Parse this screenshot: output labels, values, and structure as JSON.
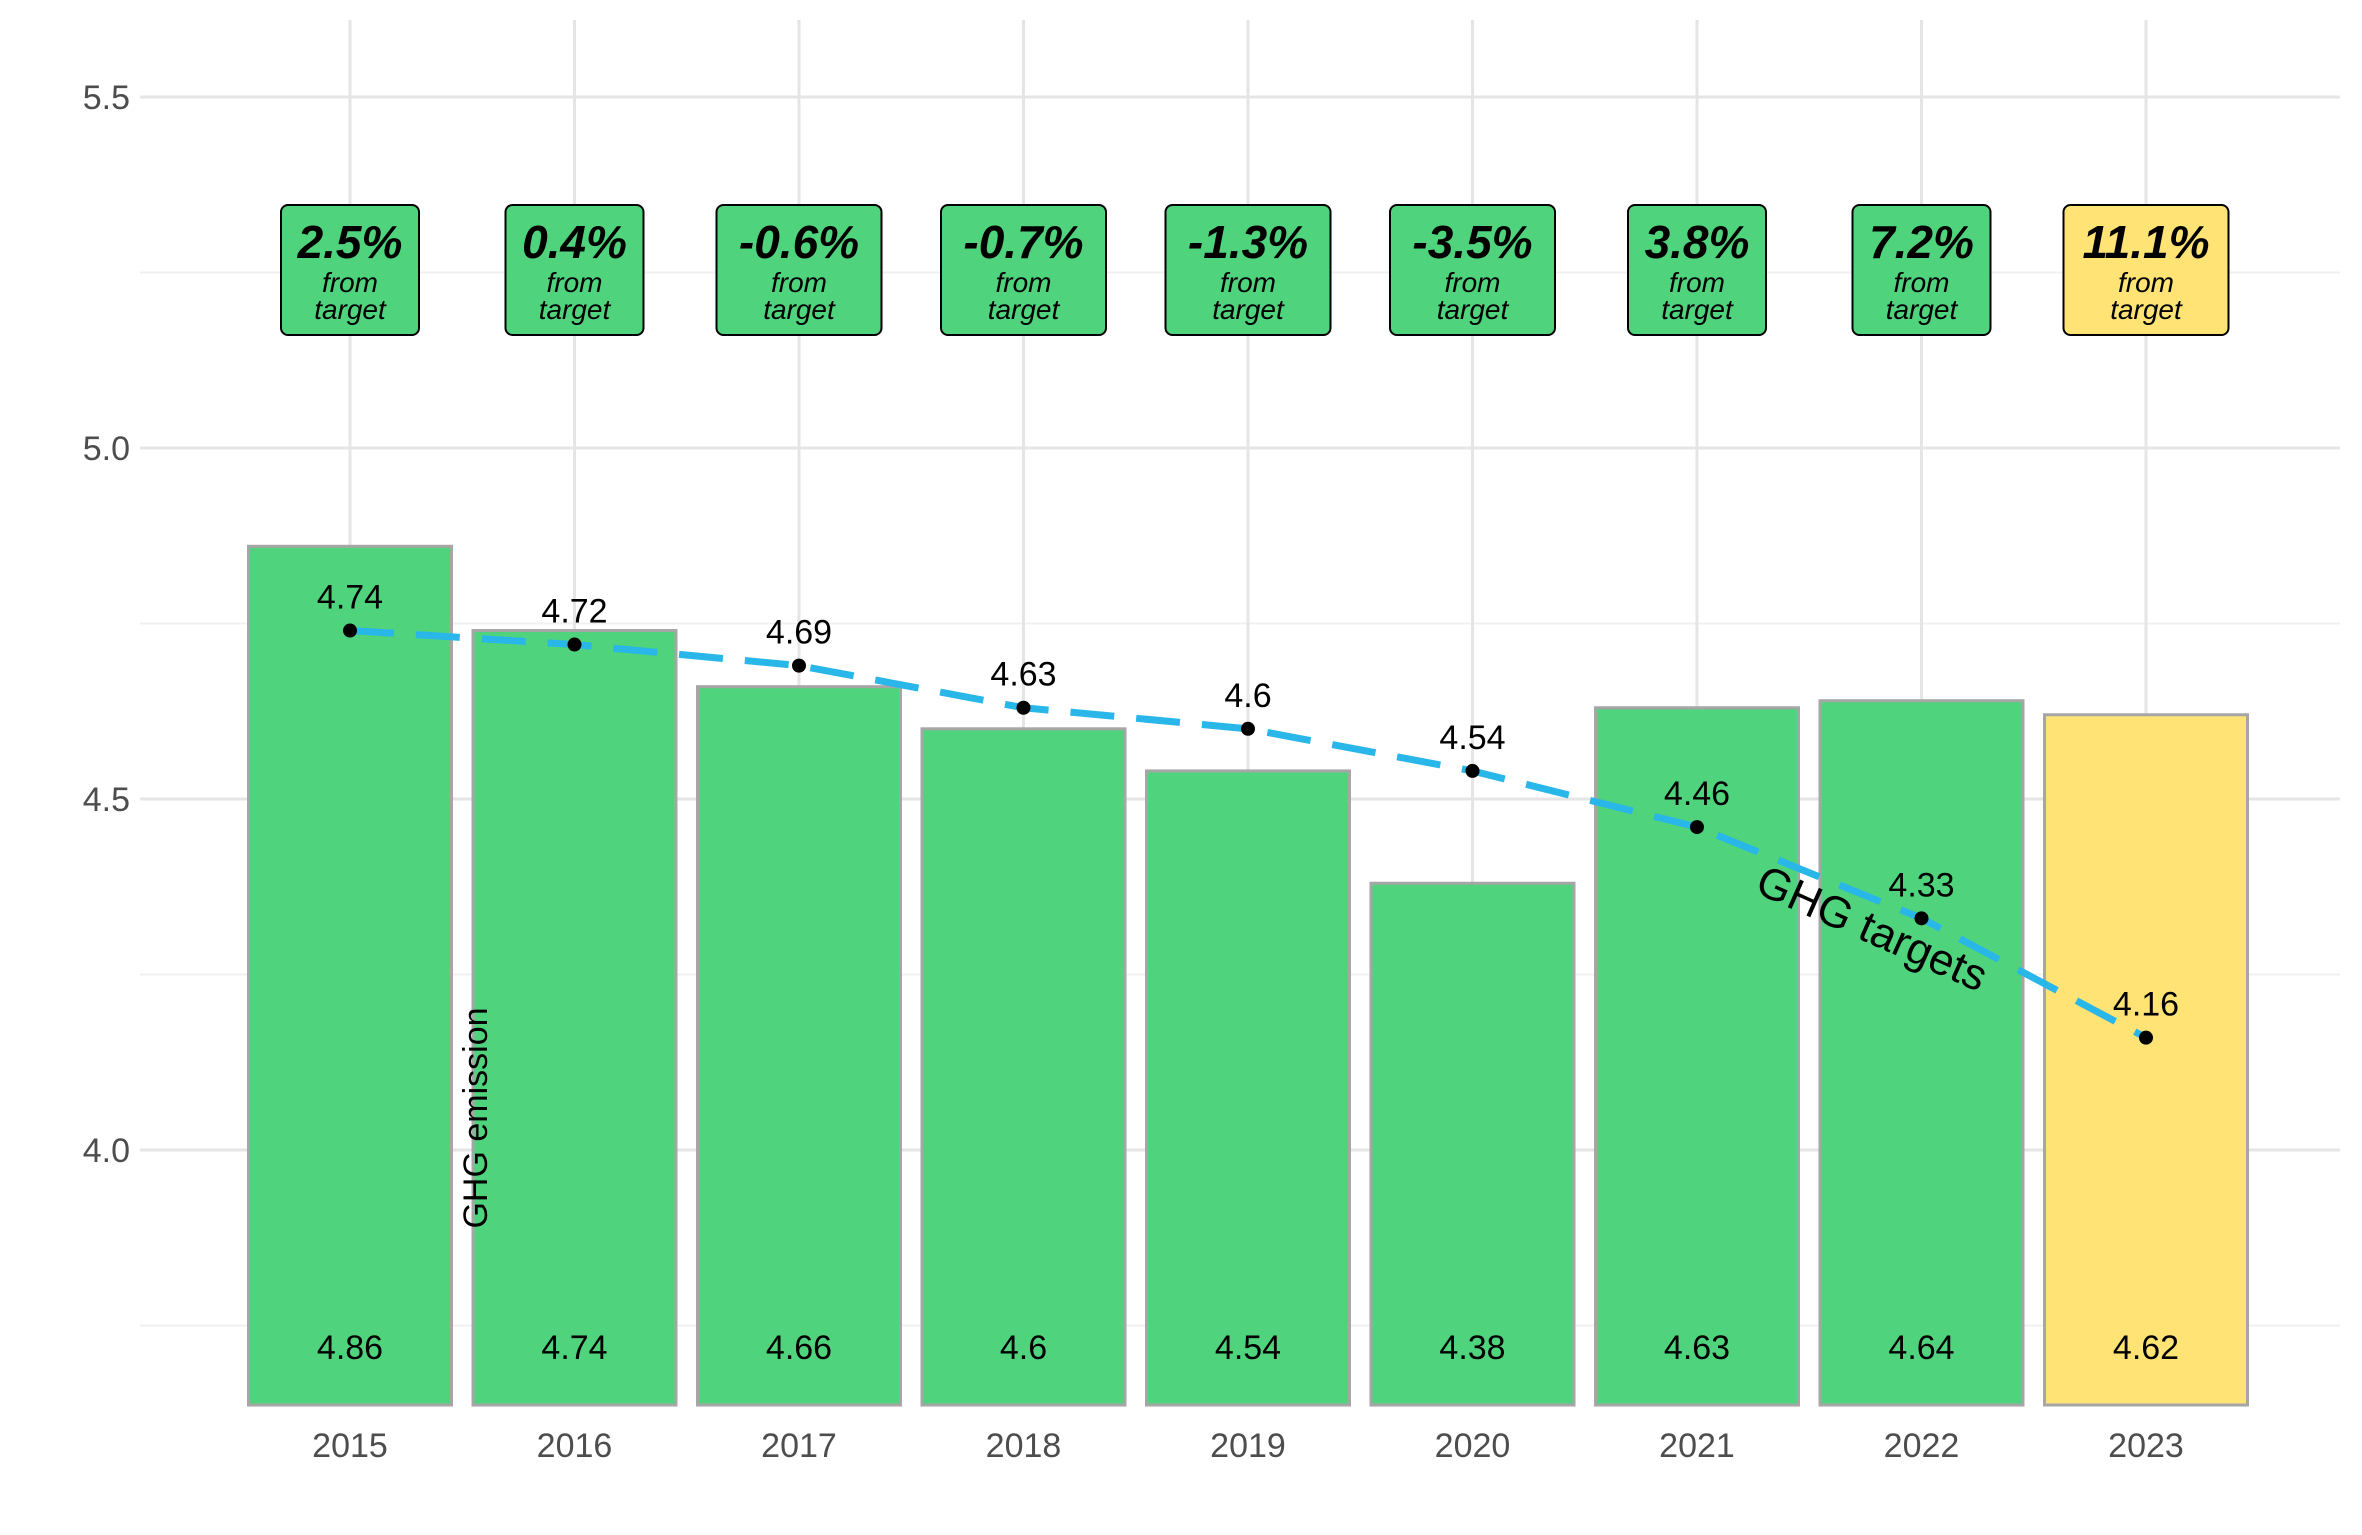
{
  "chart_data": {
    "type": "bar",
    "categories": [
      "2015",
      "2016",
      "2017",
      "2018",
      "2019",
      "2020",
      "2021",
      "2022",
      "2023"
    ],
    "series": [
      {
        "values": [
          4.86,
          4.74,
          4.66,
          4.6,
          4.54,
          4.38,
          4.63,
          4.64,
          4.62
        ]
      }
    ],
    "target_line": {
      "values": [
        4.74,
        4.72,
        4.69,
        4.63,
        4.6,
        4.54,
        4.46,
        4.33,
        4.16
      ],
      "labels": [
        "4.74",
        "4.72",
        "4.69",
        "4.63",
        "4.6",
        "4.54",
        "4.46",
        "4.33",
        "4.16"
      ],
      "style": "dashed",
      "color": "#29b6e8"
    },
    "bar_labels": [
      "4.86",
      "4.74",
      "4.66",
      "4.6",
      "4.54",
      "4.38",
      "4.63",
      "4.64",
      "4.62"
    ],
    "deviation_boxes": [
      {
        "pct": "2.5%",
        "sub1": "from",
        "sub2": "target",
        "color": "#4fd37c"
      },
      {
        "pct": "0.4%",
        "sub1": "from",
        "sub2": "target",
        "color": "#4fd37c"
      },
      {
        "pct": "-0.6%",
        "sub1": "from",
        "sub2": "target",
        "color": "#4fd37c"
      },
      {
        "pct": "-0.7%",
        "sub1": "from",
        "sub2": "target",
        "color": "#4fd37c"
      },
      {
        "pct": "-1.3%",
        "sub1": "from",
        "sub2": "target",
        "color": "#4fd37c"
      },
      {
        "pct": "-3.5%",
        "sub1": "from",
        "sub2": "target",
        "color": "#4fd37c"
      },
      {
        "pct": "3.8%",
        "sub1": "from",
        "sub2": "target",
        "color": "#4fd37c"
      },
      {
        "pct": "7.2%",
        "sub1": "from",
        "sub2": "target",
        "color": "#4fd37c"
      },
      {
        "pct": "11.1%",
        "sub1": "from",
        "sub2": "target",
        "color": "#ffe375"
      }
    ],
    "bar_colors": [
      "#4fd37c",
      "#4fd37c",
      "#4fd37c",
      "#4fd37c",
      "#4fd37c",
      "#4fd37c",
      "#4fd37c",
      "#4fd37c",
      "#ffe375"
    ],
    "bar_outline_color": "#a6a6a6",
    "yticks": [
      "4.0",
      "4.5",
      "5.0",
      "5.5"
    ],
    "ylim": [
      3.65,
      5.6
    ],
    "grid": true,
    "annotations": {
      "emission_label": "GHG emission",
      "target_label": "GHG targets"
    },
    "title": "",
    "xlabel": "",
    "ylabel": ""
  }
}
